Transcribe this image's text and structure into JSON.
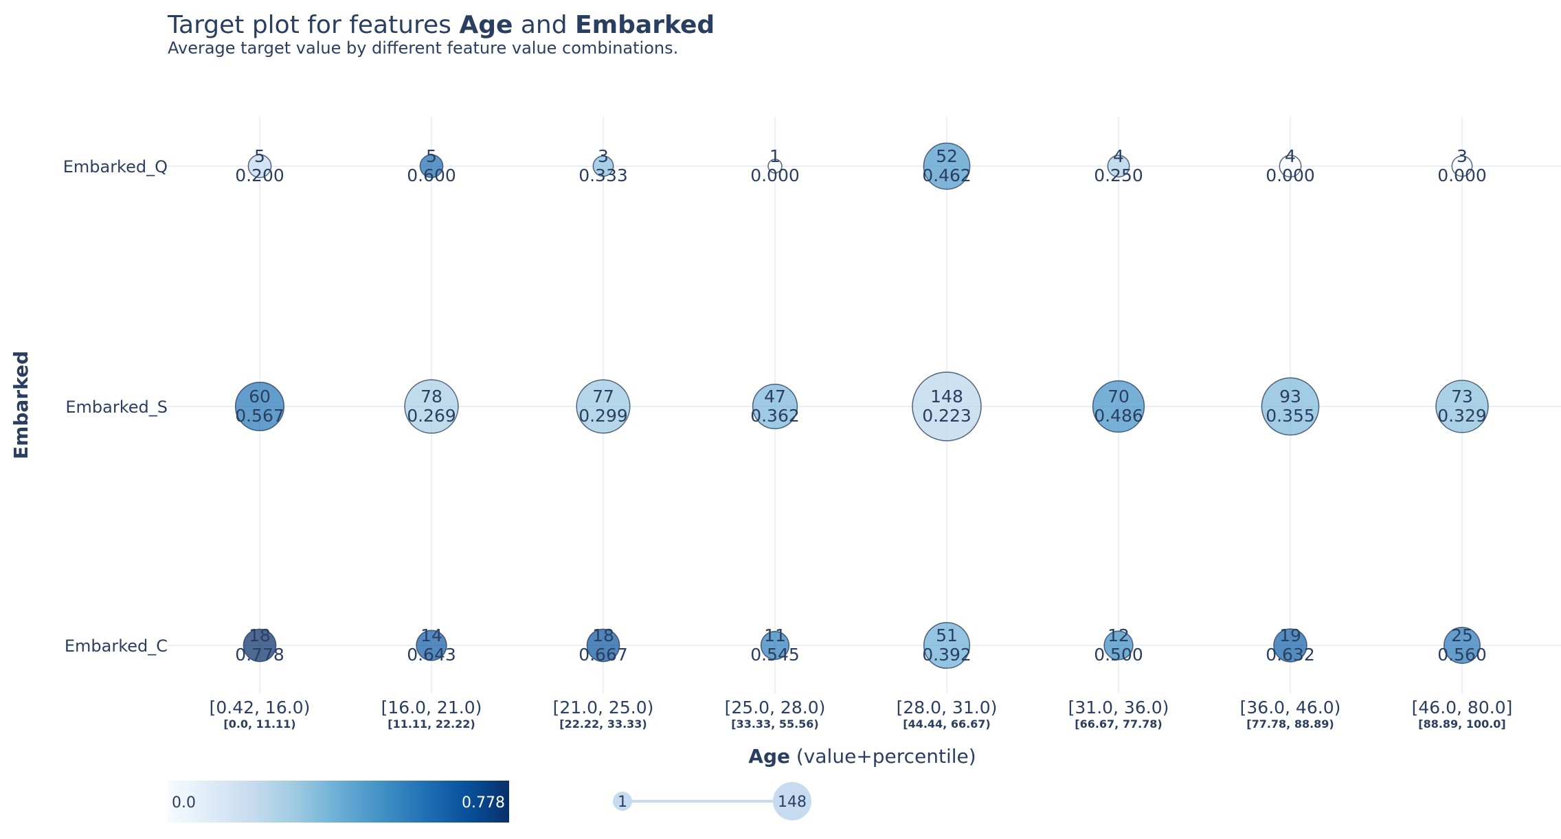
{
  "chart_data": {
    "type": "scatter",
    "title_prefix": "Target plot for features ",
    "title_feature_1": "Age",
    "title_joiner": " and ",
    "title_feature_2": "Embarked",
    "subtitle": "Average target value by different feature value combinations.",
    "ylabel": "Embarked",
    "xlabel_bold": "Age",
    "xlabel_rest": " (value+percentile)",
    "categories": [
      "[0.42, 16.0)",
      "[16.0, 21.0)",
      "[21.0, 25.0)",
      "[25.0, 28.0)",
      "[28.0, 31.0)",
      "[31.0, 36.0)",
      "[36.0, 46.0)",
      "[46.0, 80.0]"
    ],
    "percentiles": [
      "[0.0, 11.11)",
      "[11.11, 22.22)",
      "[22.22, 33.33)",
      "[33.33, 55.56)",
      "[44.44, 66.67)",
      "[66.67, 77.78)",
      "[77.78, 88.89)",
      "[88.89, 100.0]"
    ],
    "rows": [
      "Embarked_Q",
      "Embarked_S",
      "Embarked_C"
    ],
    "series": [
      {
        "name": "Embarked_Q",
        "counts": [
          5,
          5,
          3,
          1,
          52,
          4,
          4,
          3
        ],
        "values": [
          "0.200",
          "0.600",
          "0.333",
          "0.000",
          "0.462",
          "0.250",
          "0.000",
          "0.000"
        ]
      },
      {
        "name": "Embarked_S",
        "counts": [
          60,
          78,
          77,
          47,
          148,
          70,
          93,
          73
        ],
        "values": [
          "0.567",
          "0.269",
          "0.299",
          "0.362",
          "0.223",
          "0.486",
          "0.355",
          "0.329"
        ]
      },
      {
        "name": "Embarked_C",
        "counts": [
          18,
          14,
          18,
          11,
          51,
          12,
          19,
          25
        ],
        "values": [
          "0.778",
          "0.643",
          "0.667",
          "0.545",
          "0.392",
          "0.500",
          "0.632",
          "0.560"
        ]
      }
    ],
    "colorbar": {
      "min_label": "0.0",
      "max_label": "0.778",
      "min": 0.0,
      "max": 0.778,
      "colors": [
        "#f7fbff",
        "#deebf7",
        "#c6dbef",
        "#9ecae1",
        "#6baed6",
        "#4292c6",
        "#2171b5",
        "#08519c",
        "#08306b"
      ]
    },
    "size_legend": {
      "min_label": "1",
      "max_label": "148",
      "min": 1,
      "max": 148
    },
    "grid": true
  }
}
